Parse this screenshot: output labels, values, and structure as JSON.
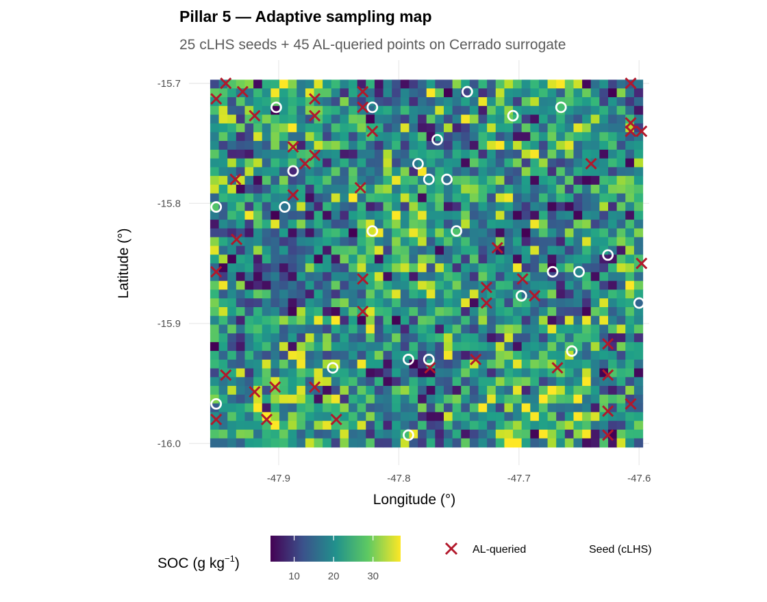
{
  "chart_data": {
    "type": "heatmap",
    "title": "Pillar 5 — Adaptive sampling map",
    "subtitle": "25 cLHS seeds + 45 AL-queried points on Cerrado surrogate",
    "xlabel": "Longitude (°)",
    "ylabel": "Latitude (°)",
    "xlim": [
      -47.957,
      -47.597
    ],
    "ylim": [
      -16.003,
      -15.697
    ],
    "x_ticks": [
      -47.9,
      -47.8,
      -47.7,
      -47.6
    ],
    "x_tick_labels": [
      "-47.9",
      "-47.8",
      "-47.7",
      "-47.6"
    ],
    "y_ticks": [
      -15.7,
      -15.8,
      -15.9,
      -16.0
    ],
    "y_tick_labels": [
      "-15.7",
      "-15.8",
      "-15.9",
      "-16.0"
    ],
    "grid": true,
    "raster": {
      "cols": 50,
      "rows": 42,
      "lon_min": -47.957,
      "lon_max": -47.597,
      "lat_min": -16.003,
      "lat_max": -15.697,
      "value_range": [
        4,
        38
      ],
      "colormap": "viridis",
      "note_values": "cell SOC values vary between 4 and 38 g/kg"
    },
    "colorbar": {
      "title_main": "SOC (g kg",
      "title_sup": "−1",
      "title_close": ")",
      "ticks": [
        10,
        20,
        30
      ],
      "tick_labels": [
        "10",
        "20",
        "30"
      ],
      "min": 4,
      "max": 37
    },
    "legend": {
      "position": "bottom",
      "al_label": "AL-queried",
      "seed_label": "Seed (cLHS)",
      "al_color": "#b2182b",
      "seed_stroke": "#ffffff"
    },
    "series": [
      {
        "name": "AL-queried",
        "marker": "x",
        "color": "#b2182b",
        "points": [
          [
            -47.944,
            -15.7
          ],
          [
            -47.952,
            -15.713
          ],
          [
            -47.93,
            -15.707
          ],
          [
            -47.92,
            -15.727
          ],
          [
            -47.87,
            -15.713
          ],
          [
            -47.87,
            -15.727
          ],
          [
            -47.83,
            -15.707
          ],
          [
            -47.83,
            -15.72
          ],
          [
            -47.822,
            -15.74
          ],
          [
            -47.888,
            -15.753
          ],
          [
            -47.878,
            -15.767
          ],
          [
            -47.87,
            -15.76
          ],
          [
            -47.936,
            -15.78
          ],
          [
            -47.888,
            -15.793
          ],
          [
            -47.832,
            -15.787
          ],
          [
            -47.935,
            -15.83
          ],
          [
            -47.952,
            -15.857
          ],
          [
            -47.83,
            -15.863
          ],
          [
            -47.83,
            -15.89
          ],
          [
            -47.718,
            -15.837
          ],
          [
            -47.727,
            -15.87
          ],
          [
            -47.727,
            -15.883
          ],
          [
            -47.697,
            -15.863
          ],
          [
            -47.687,
            -15.877
          ],
          [
            -47.64,
            -15.767
          ],
          [
            -47.607,
            -15.7
          ],
          [
            -47.607,
            -15.733
          ],
          [
            -47.607,
            -15.74
          ],
          [
            -47.598,
            -15.74
          ],
          [
            -47.598,
            -15.85
          ],
          [
            -47.944,
            -15.943
          ],
          [
            -47.92,
            -15.957
          ],
          [
            -47.903,
            -15.953
          ],
          [
            -47.87,
            -15.953
          ],
          [
            -47.91,
            -15.98
          ],
          [
            -47.852,
            -15.98
          ],
          [
            -47.952,
            -15.98
          ],
          [
            -47.736,
            -15.93
          ],
          [
            -47.774,
            -15.937
          ],
          [
            -47.668,
            -15.937
          ],
          [
            -47.626,
            -15.917
          ],
          [
            -47.626,
            -15.943
          ],
          [
            -47.626,
            -15.973
          ],
          [
            -47.607,
            -15.967
          ],
          [
            -47.626,
            -15.993
          ]
        ]
      },
      {
        "name": "Seed (cLHS)",
        "marker": "circle",
        "color": "#ffffff",
        "points": [
          [
            -47.743,
            -15.707
          ],
          [
            -47.902,
            -15.72
          ],
          [
            -47.822,
            -15.72
          ],
          [
            -47.705,
            -15.727
          ],
          [
            -47.665,
            -15.72
          ],
          [
            -47.768,
            -15.747
          ],
          [
            -47.784,
            -15.767
          ],
          [
            -47.888,
            -15.773
          ],
          [
            -47.775,
            -15.78
          ],
          [
            -47.76,
            -15.78
          ],
          [
            -47.952,
            -15.803
          ],
          [
            -47.895,
            -15.803
          ],
          [
            -47.822,
            -15.823
          ],
          [
            -47.752,
            -15.823
          ],
          [
            -47.626,
            -15.843
          ],
          [
            -47.672,
            -15.857
          ],
          [
            -47.65,
            -15.857
          ],
          [
            -47.698,
            -15.877
          ],
          [
            -47.6,
            -15.883
          ],
          [
            -47.792,
            -15.93
          ],
          [
            -47.775,
            -15.93
          ],
          [
            -47.656,
            -15.923
          ],
          [
            -47.855,
            -15.937
          ],
          [
            -47.952,
            -15.967
          ],
          [
            -47.792,
            -15.993
          ]
        ]
      }
    ]
  }
}
